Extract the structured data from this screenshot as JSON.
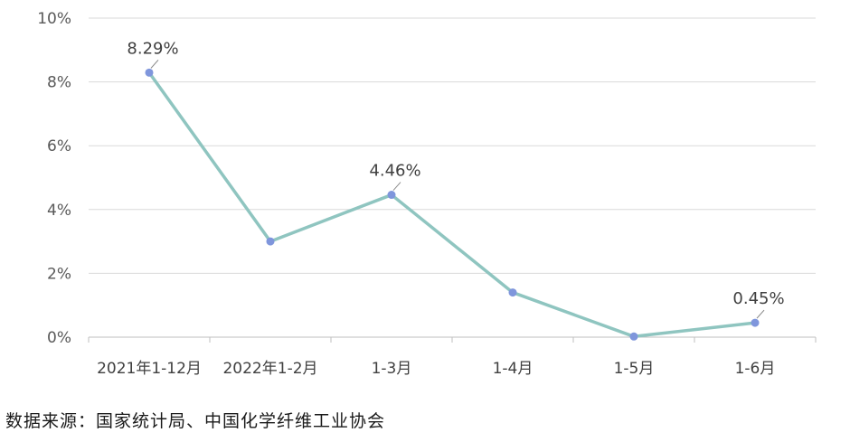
{
  "chart_data": {
    "type": "line",
    "categories": [
      "2021年1-12月",
      "2022年1-2月",
      "1-3月",
      "1-4月",
      "1-5月",
      "1-6月"
    ],
    "series": [
      {
        "values": [
          8.29,
          3.0,
          4.46,
          1.4,
          0.02,
          0.45
        ]
      }
    ],
    "data_labels": [
      {
        "index": 0,
        "text": "8.29%"
      },
      {
        "index": 2,
        "text": "4.46%"
      },
      {
        "index": 5,
        "text": "0.45%"
      }
    ],
    "y_ticks": [
      "0%",
      "2%",
      "4%",
      "6%",
      "8%",
      "10%"
    ],
    "ylim": [
      0,
      10
    ],
    "grid": true,
    "line_color": "#8fc5c0",
    "marker_color": "#7f96dc"
  },
  "source_note": "数据来源：国家统计局、中国化学纤维工业协会"
}
